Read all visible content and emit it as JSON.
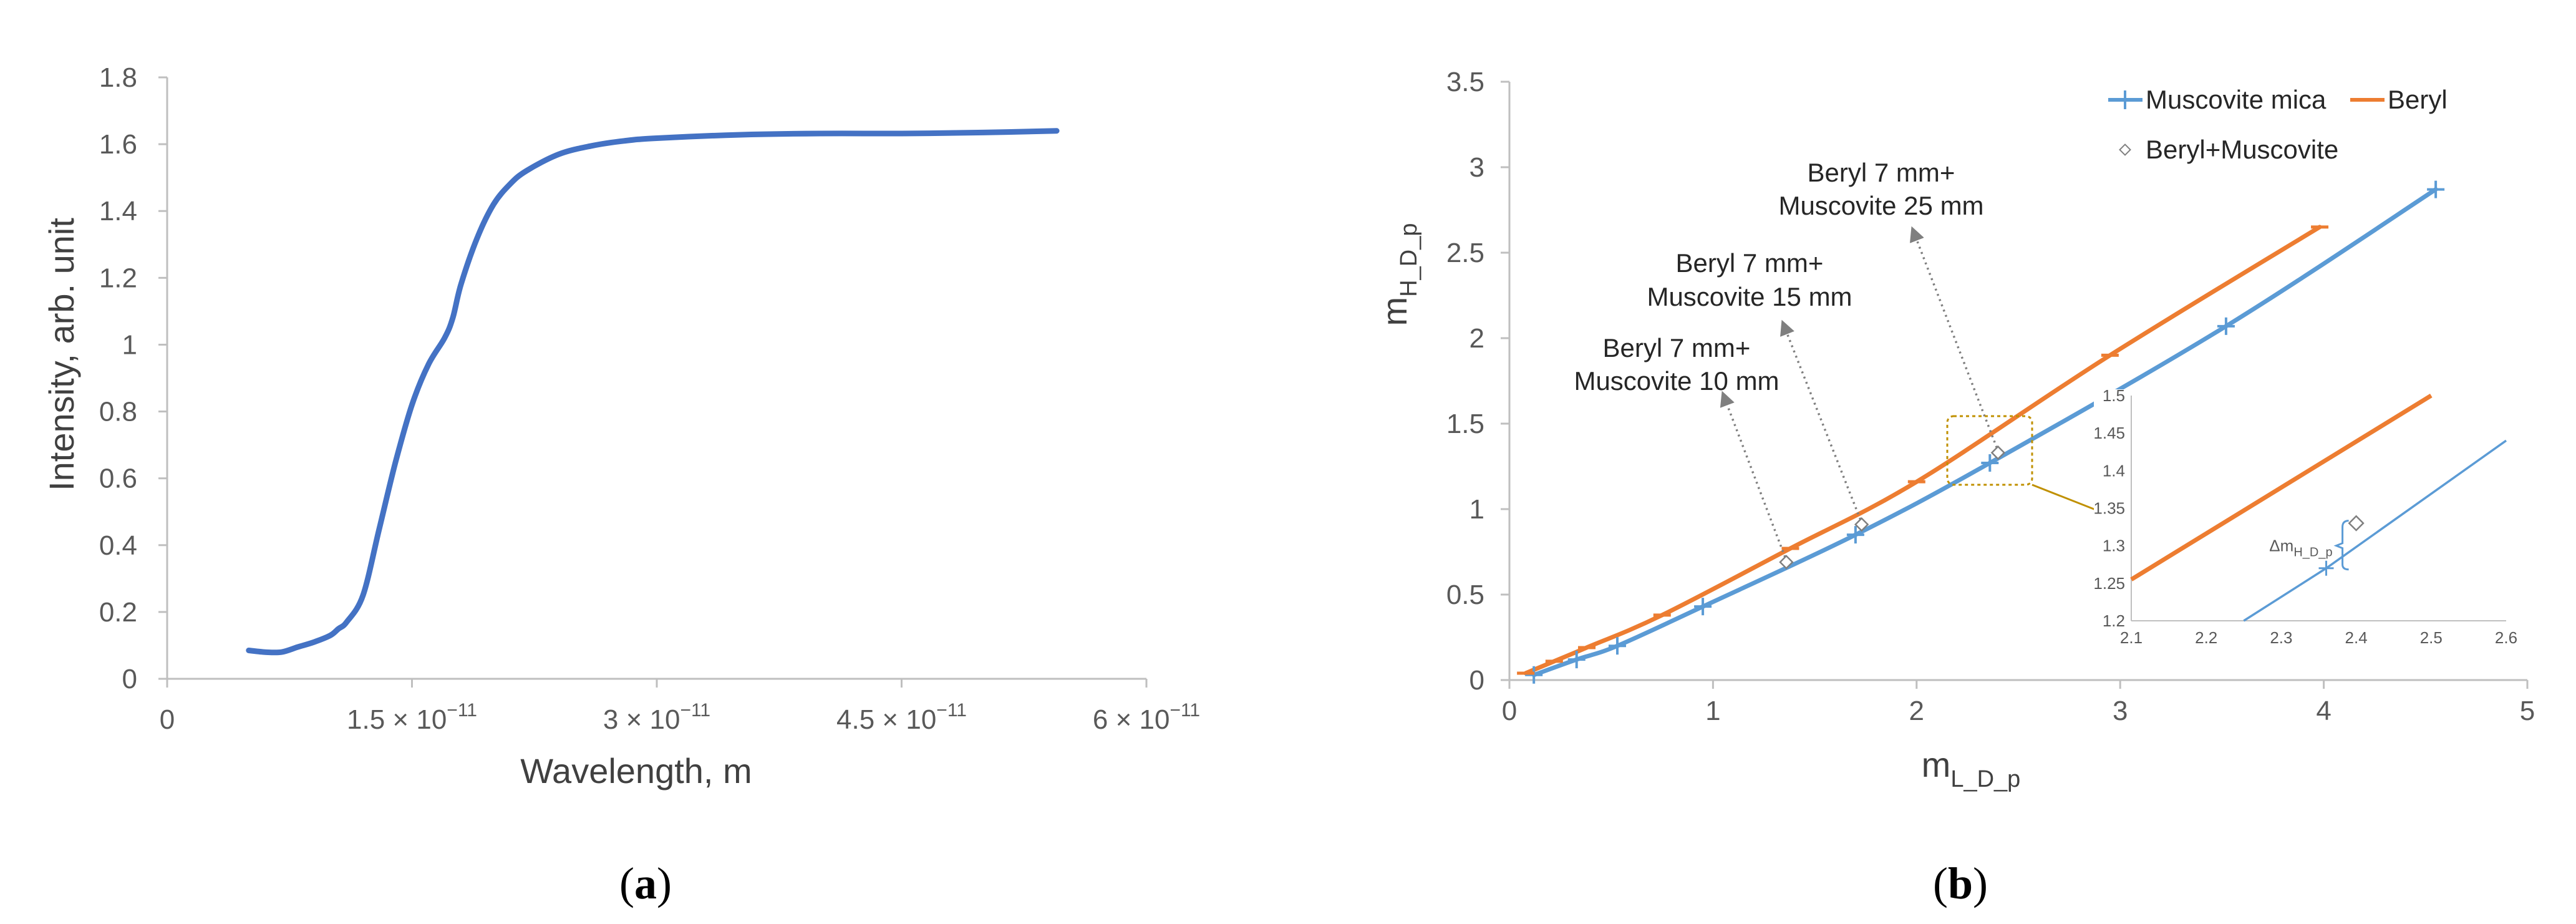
{
  "chart_data": [
    {
      "type": "line",
      "panel_label": "a",
      "xlabel": "Wavelength,  m",
      "ylabel": "Intensity, arb. unit",
      "xlim": [
        0,
        6e-11
      ],
      "ylim": [
        0,
        1.8
      ],
      "x_ticks": [
        0,
        1.5e-11,
        3e-11,
        4.5e-11,
        6e-11
      ],
      "x_tick_labels": [
        "0",
        "1.5 × 10",
        "3 × 10",
        "4.5 × 10",
        "6 × 10"
      ],
      "x_tick_exponent": "−11",
      "y_ticks": [
        0,
        0.2,
        0.4,
        0.6,
        0.8,
        1,
        1.2,
        1.4,
        1.6,
        1.8
      ],
      "y_tick_labels": [
        "0",
        "0.2",
        "0.4",
        "0.6",
        "0.8",
        "1",
        "1.2",
        "1.4",
        "1.6",
        "1.8"
      ],
      "grid": false,
      "color": "#4472C4",
      "series": [
        {
          "x": [
            5e-12,
            6e-12,
            7e-12,
            8e-12,
            9e-12,
            1e-11,
            1.05e-11,
            1.1e-11,
            1.2e-11,
            1.3e-11,
            1.4e-11,
            1.5e-11,
            1.6e-11,
            1.7e-11,
            1.75e-11,
            1.8e-11,
            1.9e-11,
            2e-11,
            2.1e-11,
            2.2e-11,
            2.4e-11,
            2.6e-11,
            2.8e-11,
            3e-11,
            3.5e-11,
            4e-11,
            4.5e-11,
            5e-11,
            5.45e-11
          ],
          "y": [
            0.085,
            0.08,
            0.08,
            0.095,
            0.11,
            0.13,
            0.15,
            0.17,
            0.25,
            0.45,
            0.65,
            0.82,
            0.94,
            1.02,
            1.08,
            1.18,
            1.32,
            1.42,
            1.48,
            1.52,
            1.57,
            1.595,
            1.61,
            1.618,
            1.628,
            1.632,
            1.632,
            1.635,
            1.64
          ]
        }
      ]
    },
    {
      "type": "line",
      "panel_label": "b",
      "xlabel": "m",
      "xlabel_sub": "L_D_p",
      "ylabel": "m",
      "ylabel_sub": "H_D_p",
      "xlim": [
        0,
        5
      ],
      "ylim": [
        0,
        3.5
      ],
      "x_ticks": [
        0,
        1,
        2,
        3,
        4,
        5
      ],
      "x_tick_labels": [
        "0",
        "1",
        "2",
        "3",
        "4",
        "5"
      ],
      "y_ticks": [
        0,
        0.5,
        1,
        1.5,
        2,
        2.5,
        3,
        3.5
      ],
      "y_tick_labels": [
        "0",
        "0.5",
        "1",
        "1.5",
        "2",
        "2.5",
        "3",
        "3.5"
      ],
      "grid": false,
      "legend_position": "top-right",
      "series": [
        {
          "name": "Muscovite mica",
          "color": "#5B9BD5",
          "marker": "plus",
          "x": [
            0.12,
            0.33,
            0.53,
            0.95,
            1.7,
            2.36,
            3.52,
            4.55
          ],
          "y": [
            0.03,
            0.12,
            0.2,
            0.43,
            0.85,
            1.27,
            2.07,
            2.87
          ]
        },
        {
          "name": "Beryl",
          "color": "#ED7D31",
          "marker": "dash",
          "x": [
            0.08,
            0.22,
            0.38,
            0.75,
            1.38,
            2.0,
            2.95,
            3.98
          ],
          "y": [
            0.04,
            0.11,
            0.19,
            0.38,
            0.77,
            1.16,
            1.9,
            2.65
          ]
        },
        {
          "name": "Beryl+Muscovite",
          "color": "#7F7F7F",
          "marker": "diamond",
          "x": [
            1.36,
            1.73,
            2.4
          ],
          "y": [
            0.69,
            0.91,
            1.33
          ]
        }
      ],
      "annotations": [
        {
          "line1": "Beryl 7 mm+",
          "line2": "Muscovite 10 mm"
        },
        {
          "line1": "Beryl 7 mm+",
          "line2": "Muscovite 15 mm"
        },
        {
          "line1": "Beryl 7 mm+",
          "line2": "Muscovite 25 mm"
        }
      ],
      "inset": {
        "xlim": [
          2.1,
          2.6
        ],
        "ylim": [
          1.2,
          1.5
        ],
        "x_tick_labels": [
          "2.1",
          "2.2",
          "2.3",
          "2.4",
          "2.5",
          "2.6"
        ],
        "y_tick_labels": [
          "1.2",
          "1.25",
          "1.3",
          "1.35",
          "1.4",
          "1.45",
          "1.5"
        ],
        "delta_label": "Δm",
        "delta_sub": "H_D_p",
        "muscovite": {
          "x": [
            2.25,
            2.36,
            2.6
          ],
          "y": [
            1.2,
            1.27,
            1.44
          ],
          "marker_index": 1
        },
        "beryl": {
          "x": [
            2.1,
            2.5
          ],
          "y": [
            1.255,
            1.5
          ]
        },
        "diamond": {
          "x": 2.4,
          "y": 1.33
        }
      }
    }
  ]
}
